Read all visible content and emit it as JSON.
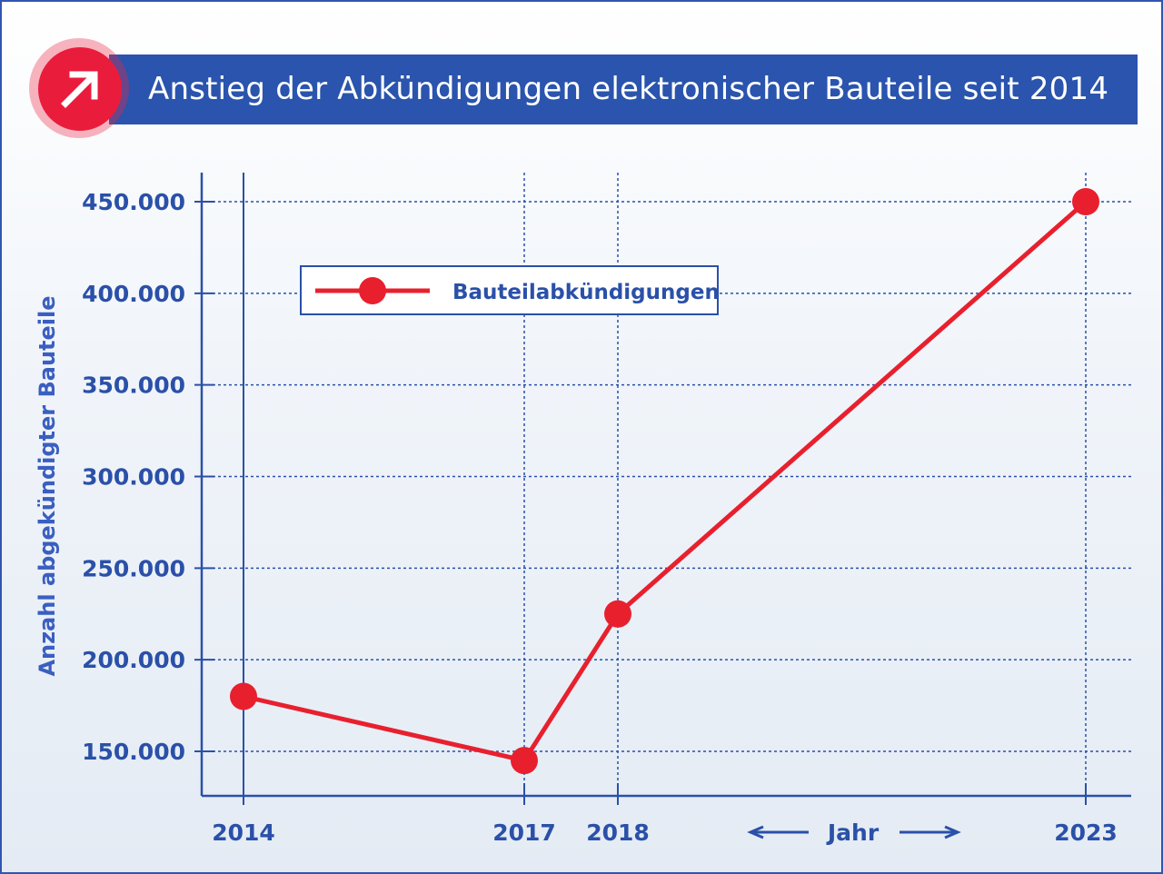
{
  "chart_data": {
    "type": "line",
    "title": "Anstieg der Abkündigungen elektronischer Bauteile seit 2014",
    "xlabel": "Jahr",
    "ylabel": "Anzahl abgekündigter Bauteile",
    "x": [
      2014,
      2017,
      2018,
      2023
    ],
    "x_tick_labels": [
      "2014",
      "2017",
      "2018",
      "2023"
    ],
    "y_ticks": [
      150000,
      200000,
      250000,
      300000,
      350000,
      400000,
      450000
    ],
    "y_tick_labels": [
      "150.000",
      "200.000",
      "250.000",
      "300.000",
      "350.000",
      "400.000",
      "450.000"
    ],
    "ylim": [
      136000,
      458000
    ],
    "xlim": [
      2013.5,
      2023.5
    ],
    "series": [
      {
        "name": "Bauteilabkündigungen",
        "values": [
          180000,
          145000,
          225000,
          450000
        ],
        "color": "#e8202e"
      }
    ],
    "grid": true,
    "legend_placement": "top-left",
    "axis_color": "#2a50a8",
    "title_icon": "arrow-up-right-icon",
    "title_bar_color": "#2a54ad",
    "badge_color": "#ea1c3c"
  }
}
